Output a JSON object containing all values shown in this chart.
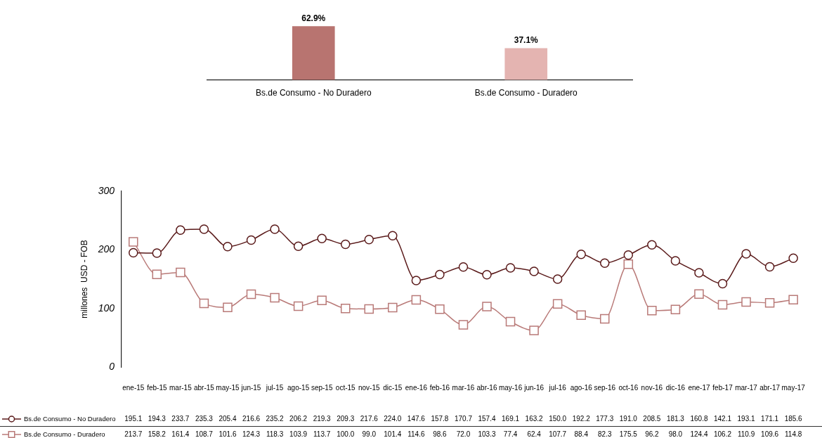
{
  "chart_data": [
    {
      "type": "bar",
      "categories": [
        "Bs.de Consumo - No Duradero",
        "Bs.de Consumo - Duradero"
      ],
      "values": [
        62.9,
        37.1
      ],
      "colors": [
        "#b87470",
        "#e4b4b1"
      ],
      "value_labels": [
        "62.9%",
        "37.1%"
      ],
      "tick_labels": "x"
    },
    {
      "type": "line",
      "ylabel": "millones  USD - FOB",
      "ylim": [
        0,
        300
      ],
      "yticks": [
        0,
        100,
        200,
        300
      ],
      "legend": "bottom left",
      "categories": [
        "ene-15",
        "feb-15",
        "mar-15",
        "abr-15",
        "may-15",
        "jun-15",
        "jul-15",
        "ago-15",
        "sep-15",
        "oct-15",
        "nov-15",
        "dic-15",
        "ene-16",
        "feb-16",
        "mar-16",
        "abr-16",
        "may-16",
        "jun-16",
        "jul-16",
        "ago-16",
        "sep-16",
        "oct-16",
        "nov-16",
        "dic-16",
        "ene-17",
        "feb-17",
        "mar-17",
        "abr-17",
        "may-17"
      ],
      "series": [
        {
          "name": "Bs.de Consumo - No Duradero",
          "color": "#5a1a1a",
          "marker": "circle",
          "values": [
            195.1,
            194.3,
            233.7,
            235.3,
            205.4,
            216.6,
            235.2,
            206.2,
            219.3,
            209.3,
            217.6,
            224.0,
            147.6,
            157.8,
            170.7,
            157.4,
            169.1,
            163.2,
            150.0,
            192.2,
            177.3,
            191.0,
            208.5,
            181.3,
            160.8,
            142.1,
            193.1,
            171.1,
            185.6
          ],
          "value_labels": [
            "195.1",
            "194.3",
            "233.7",
            "235.3",
            "205.4",
            "216.6",
            "235.2",
            "206.2",
            "219.3",
            "209.3",
            "217.6",
            "224.0",
            "147.6",
            "157.8",
            "170.7",
            "157.4",
            "169.1",
            "163.2",
            "150.0",
            "192.2",
            "177.3",
            "191.0",
            "208.5",
            "181.3",
            "160.8",
            "142.1",
            "193.1",
            "171.1",
            "185.6"
          ]
        },
        {
          "name": "Bs.de Consumo - Duradero",
          "color": "#b97a78",
          "marker": "square",
          "values": [
            213.7,
            158.2,
            161.4,
            108.7,
            101.6,
            124.3,
            118.3,
            103.9,
            113.7,
            100.0,
            99.0,
            101.4,
            114.6,
            98.6,
            72.0,
            103.3,
            77.4,
            62.4,
            107.7,
            88.4,
            82.3,
            175.5,
            96.2,
            98.0,
            124.4,
            106.2,
            110.9,
            109.6,
            114.8
          ],
          "value_labels": [
            "213.7",
            "158.2",
            "161.4",
            "108.7",
            "101.6",
            "124.3",
            "118.3",
            "103.9",
            "113.7",
            "100.0",
            "99.0",
            "101.4",
            "114.6",
            "98.6",
            "72.0",
            "103.3",
            "77.4",
            "62.4",
            "107.7",
            "88.4",
            "82.3",
            "175.5",
            "96.2",
            "98.0",
            "124.4",
            "106.2",
            "110.9",
            "109.6",
            "114.8"
          ]
        }
      ]
    }
  ]
}
